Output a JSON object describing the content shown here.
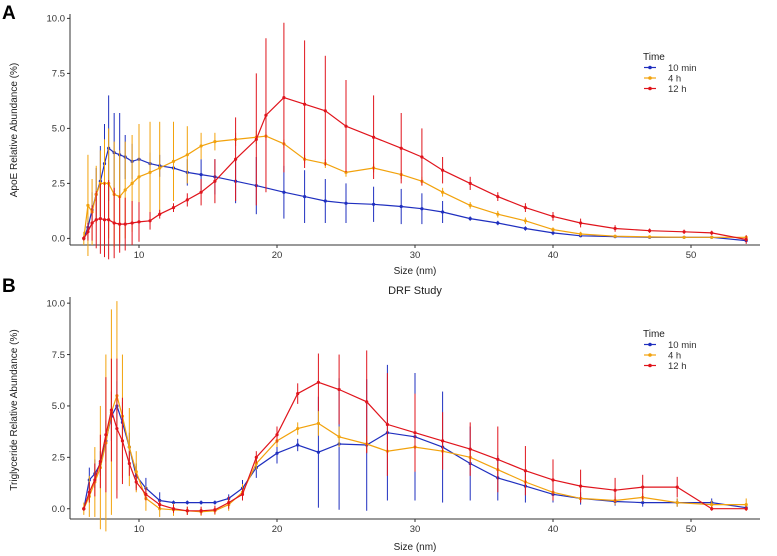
{
  "figure": {
    "panel_labels": [
      "A",
      "B"
    ]
  },
  "colors": {
    "10 min": "#1f2fbf",
    "4 h": "#f2a20c",
    "12 h": "#e0141c",
    "axis": "#333333",
    "text": "#333333"
  },
  "chart_data": [
    {
      "type": "line",
      "panel": "A",
      "title": "",
      "xlabel": "Size (nm)",
      "ylabel": "ApoE Relative Abundance (%)",
      "xlim": [
        5,
        55
      ],
      "ylim": [
        -0.3,
        10.2
      ],
      "xticks": [
        10,
        20,
        30,
        40,
        50
      ],
      "yticks": [
        0.0,
        2.5,
        5.0,
        7.5,
        10.0
      ],
      "ytick_labels": [
        "0.0",
        "2.5",
        "5.0",
        "7.5",
        "10.0"
      ],
      "grid": false,
      "legend_title": "Time",
      "legend_position": "right",
      "series": [
        {
          "name": "10 min",
          "x": [
            6.0,
            6.3,
            6.6,
            6.9,
            7.2,
            7.5,
            7.8,
            8.2,
            8.6,
            9.0,
            9.5,
            10.0,
            10.8,
            11.5,
            12.5,
            13.5,
            14.5,
            15.5,
            17.0,
            18.5,
            20.5,
            22.0,
            23.5,
            25.0,
            27.0,
            29.0,
            30.5,
            32.0,
            34.0,
            36.0,
            38.0,
            40.0,
            42.0,
            44.5,
            47.0,
            49.5,
            51.5,
            54.0
          ],
          "y": [
            0.0,
            0.5,
            1.3,
            2.0,
            2.6,
            3.4,
            4.1,
            3.9,
            3.8,
            3.7,
            3.5,
            3.6,
            3.4,
            3.3,
            3.2,
            3.0,
            2.9,
            2.8,
            2.6,
            2.4,
            2.1,
            1.9,
            1.7,
            1.6,
            1.55,
            1.45,
            1.35,
            1.2,
            0.9,
            0.7,
            0.45,
            0.25,
            0.12,
            0.08,
            0.05,
            0.05,
            0.05,
            -0.1
          ],
          "err": [
            0.1,
            0.5,
            0.8,
            1.2,
            1.6,
            1.8,
            2.4,
            1.8,
            1.9,
            1.0,
            0.8,
            0.5,
            0.5,
            0.5,
            0.5,
            0.6,
            0.7,
            0.8,
            1.0,
            1.3,
            1.2,
            1.2,
            1.0,
            0.9,
            0.8,
            0.8,
            0.7,
            0.5,
            0.1,
            0.1,
            0.1,
            0.1,
            0.05,
            0.05,
            0.05,
            0.05,
            0.05,
            0.05
          ]
        },
        {
          "name": "4 h",
          "x": [
            6.0,
            6.3,
            6.6,
            6.9,
            7.2,
            7.5,
            7.8,
            8.2,
            8.6,
            9.0,
            9.5,
            10.0,
            10.8,
            11.5,
            12.5,
            13.5,
            14.5,
            15.5,
            17.0,
            18.5,
            19.2,
            20.5,
            22.0,
            23.5,
            25.0,
            27.0,
            29.0,
            30.5,
            32.0,
            34.0,
            36.0,
            38.0,
            40.0,
            42.0,
            44.5,
            47.0,
            49.5,
            51.5,
            54.0
          ],
          "y": [
            0.0,
            1.5,
            1.2,
            2.0,
            2.5,
            2.5,
            2.5,
            2.0,
            1.9,
            2.2,
            2.5,
            2.8,
            3.0,
            3.2,
            3.5,
            3.8,
            4.2,
            4.4,
            4.5,
            4.6,
            4.65,
            4.3,
            3.6,
            3.4,
            3.0,
            3.2,
            2.9,
            2.6,
            2.1,
            1.5,
            1.1,
            0.8,
            0.4,
            0.2,
            0.1,
            0.07,
            0.05,
            0.05,
            0.05
          ],
          "err": [
            0.3,
            2.3,
            1.5,
            1.3,
            1.5,
            2.0,
            2.5,
            2.4,
            2.1,
            2.2,
            2.2,
            2.4,
            2.3,
            2.1,
            1.8,
            1.3,
            0.6,
            0.4,
            0.3,
            0.3,
            0.2,
            0.2,
            0.2,
            0.2,
            0.2,
            0.2,
            0.2,
            0.2,
            0.2,
            0.15,
            0.15,
            0.15,
            0.1,
            0.1,
            0.05,
            0.05,
            0.05,
            0.05,
            0.05
          ]
        },
        {
          "name": "12 h",
          "x": [
            6.0,
            6.3,
            6.6,
            6.9,
            7.2,
            7.5,
            7.8,
            8.2,
            8.6,
            9.0,
            9.5,
            10.0,
            10.8,
            11.5,
            12.5,
            13.5,
            14.5,
            15.5,
            17.0,
            18.5,
            19.2,
            20.5,
            22.0,
            23.5,
            25.0,
            27.0,
            29.0,
            30.5,
            32.0,
            34.0,
            36.0,
            38.0,
            40.0,
            42.0,
            44.5,
            47.0,
            49.5,
            51.5,
            54.0
          ],
          "y": [
            0.0,
            0.3,
            0.7,
            0.85,
            0.9,
            0.85,
            0.85,
            0.7,
            0.65,
            0.65,
            0.7,
            0.75,
            0.8,
            1.1,
            1.4,
            1.75,
            2.1,
            2.6,
            3.6,
            4.5,
            5.6,
            6.4,
            6.1,
            5.8,
            5.1,
            4.6,
            4.1,
            3.7,
            3.1,
            2.5,
            1.9,
            1.4,
            1.0,
            0.7,
            0.45,
            0.35,
            0.3,
            0.25,
            -0.05
          ],
          "err": [
            0.1,
            0.4,
            0.8,
            1.3,
            1.6,
            1.7,
            1.8,
            1.6,
            1.3,
            1.2,
            1.0,
            0.9,
            0.4,
            0.2,
            0.2,
            0.3,
            0.6,
            1.0,
            1.9,
            3.0,
            3.5,
            3.4,
            2.9,
            2.5,
            2.1,
            1.9,
            1.6,
            1.3,
            0.6,
            0.3,
            0.2,
            0.2,
            0.2,
            0.2,
            0.15,
            0.1,
            0.1,
            0.1,
            0.2
          ]
        }
      ]
    },
    {
      "type": "line",
      "panel": "B",
      "title": "DRF Study",
      "xlabel": "Size (nm)",
      "ylabel": "Triglyceride Relative Abundance (%)",
      "xlim": [
        5,
        55
      ],
      "ylim": [
        -0.5,
        10.3
      ],
      "xticks": [
        10,
        20,
        30,
        40,
        50
      ],
      "yticks": [
        0.0,
        2.5,
        5.0,
        7.5,
        10.0
      ],
      "ytick_labels": [
        "0.0",
        "2.5",
        "5.0",
        "7.5",
        "10.0"
      ],
      "grid": false,
      "legend_title": "Time",
      "legend_position": "right",
      "series": [
        {
          "name": "10 min",
          "x": [
            6.0,
            6.4,
            6.8,
            7.2,
            7.6,
            8.0,
            8.4,
            8.8,
            9.3,
            9.8,
            10.5,
            11.5,
            12.5,
            13.5,
            14.5,
            15.5,
            16.5,
            17.5,
            18.5,
            20.0,
            21.5,
            23.0,
            24.5,
            26.5,
            28.0,
            30.0,
            32.0,
            34.0,
            36.0,
            38.0,
            40.0,
            42.0,
            44.5,
            46.5,
            49.0,
            51.5,
            54.0
          ],
          "y": [
            0.0,
            1.4,
            1.7,
            2.2,
            3.3,
            4.5,
            5.0,
            4.2,
            3.0,
            1.6,
            1.0,
            0.4,
            0.3,
            0.3,
            0.3,
            0.3,
            0.5,
            1.0,
            2.0,
            2.7,
            3.1,
            2.75,
            3.15,
            3.1,
            3.7,
            3.5,
            3.0,
            2.2,
            1.5,
            1.1,
            0.7,
            0.5,
            0.35,
            0.3,
            0.3,
            0.3,
            0.05
          ],
          "err": [
            0.1,
            0.6,
            0.7,
            0.6,
            1.0,
            1.2,
            1.2,
            1.0,
            0.7,
            0.6,
            0.5,
            0.4,
            0.1,
            0.1,
            0.1,
            0.1,
            0.2,
            0.4,
            0.5,
            0.5,
            0.3,
            2.7,
            3.2,
            3.2,
            3.3,
            3.1,
            2.7,
            1.8,
            1.1,
            0.8,
            0.4,
            0.3,
            0.2,
            0.2,
            0.2,
            0.2,
            0.1
          ]
        },
        {
          "name": "4 h",
          "x": [
            6.0,
            6.4,
            6.8,
            7.2,
            7.6,
            8.0,
            8.4,
            8.8,
            9.3,
            9.8,
            10.5,
            11.5,
            12.5,
            13.5,
            14.5,
            15.5,
            16.5,
            17.5,
            18.5,
            20.0,
            21.5,
            23.0,
            24.5,
            26.5,
            28.0,
            30.0,
            32.0,
            34.0,
            36.0,
            38.0,
            40.0,
            42.0,
            44.5,
            46.5,
            49.0,
            51.5,
            54.0
          ],
          "y": [
            0.0,
            0.6,
            1.3,
            2.0,
            3.2,
            4.7,
            5.5,
            4.5,
            3.0,
            1.8,
            0.5,
            0.0,
            -0.05,
            -0.1,
            -0.15,
            -0.1,
            0.2,
            0.8,
            2.2,
            3.3,
            3.9,
            4.15,
            3.5,
            3.15,
            2.8,
            3.0,
            2.8,
            2.5,
            1.9,
            1.3,
            0.8,
            0.5,
            0.4,
            0.55,
            0.3,
            0.2,
            0.2
          ],
          "err": [
            0.3,
            1.0,
            1.7,
            3.0,
            4.3,
            5.0,
            4.6,
            3.0,
            1.9,
            1.0,
            0.6,
            0.4,
            0.3,
            0.2,
            0.2,
            0.2,
            0.3,
            0.4,
            0.3,
            0.3,
            0.3,
            0.6,
            0.5,
            0.4,
            0.3,
            0.3,
            0.3,
            0.3,
            0.3,
            0.3,
            0.2,
            0.2,
            0.2,
            0.2,
            0.2,
            0.2,
            0.3
          ]
        },
        {
          "name": "12 h",
          "x": [
            6.0,
            6.4,
            6.8,
            7.2,
            7.6,
            8.0,
            8.4,
            8.8,
            9.3,
            9.8,
            10.5,
            11.5,
            12.5,
            13.5,
            14.5,
            15.5,
            16.5,
            17.5,
            18.5,
            20.0,
            21.5,
            23.0,
            24.5,
            26.5,
            28.0,
            30.0,
            32.0,
            34.0,
            36.0,
            38.0,
            40.0,
            42.0,
            44.5,
            46.5,
            49.0,
            51.5,
            54.0
          ],
          "y": [
            0.0,
            0.8,
            1.4,
            2.3,
            3.6,
            4.8,
            3.9,
            3.3,
            2.2,
            1.3,
            0.7,
            0.2,
            0.0,
            -0.1,
            -0.1,
            -0.05,
            0.3,
            0.7,
            2.5,
            3.6,
            5.6,
            6.15,
            5.8,
            5.2,
            4.1,
            3.7,
            3.3,
            2.9,
            2.4,
            1.85,
            1.4,
            1.1,
            0.9,
            1.05,
            1.05,
            0.0,
            0.0
          ],
          "err": [
            0.1,
            0.5,
            0.8,
            1.3,
            2.8,
            2.5,
            3.4,
            2.1,
            0.6,
            0.4,
            0.3,
            0.2,
            0.2,
            0.2,
            0.2,
            0.2,
            0.3,
            0.3,
            0.3,
            0.4,
            0.5,
            1.4,
            1.7,
            2.5,
            2.5,
            1.9,
            1.4,
            1.3,
            1.6,
            1.2,
            1.0,
            0.8,
            0.6,
            0.6,
            0.5,
            0.1,
            0.1
          ]
        }
      ]
    }
  ]
}
